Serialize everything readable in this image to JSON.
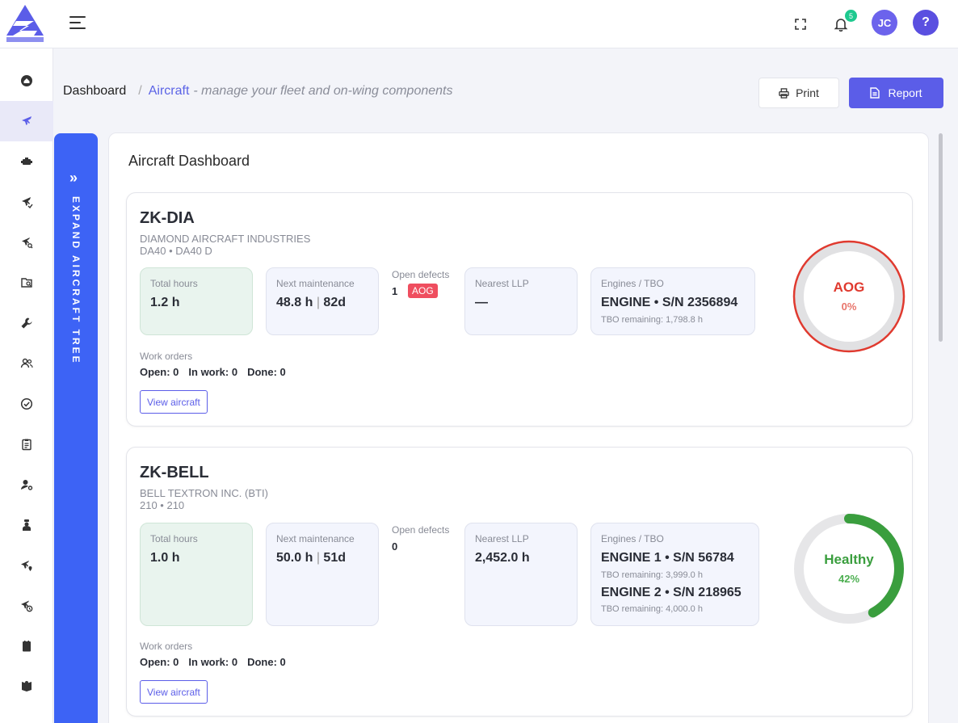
{
  "topbar": {
    "notification_count": "5",
    "user_initials": "JC",
    "help_label": "?"
  },
  "breadcrumb": {
    "home": "Dashboard",
    "separator": "/",
    "current": "Aircraft",
    "description": "- manage your fleet and on-wing components"
  },
  "actions": {
    "print_label": "Print",
    "report_label": "Report"
  },
  "rail": {
    "label": "EXPAND AIRCRAFT TREE"
  },
  "panel": {
    "title": "Aircraft Dashboard"
  },
  "aircraft": [
    {
      "registration": "ZK-DIA",
      "manufacturer": "DIAMOND AIRCRAFT INDUSTRIES",
      "model": "DA40  • DA40 D",
      "total_hours_label": "Total hours",
      "total_hours": "1.2 h",
      "next_maint_label": "Next maintenance",
      "next_maint_hours": "48.8 h",
      "next_maint_days": "82d",
      "defects_label": "Open defects",
      "defects_count": "1",
      "defects_badge": "AOG",
      "llp_label": "Nearest LLP",
      "llp_value": "—",
      "engines_label": "Engines / TBO",
      "engines": [
        {
          "name": "ENGINE • S/N 2356894",
          "tbo": "TBO remaining: 1,798.8 h"
        }
      ],
      "work_orders_label": "Work orders",
      "work_orders": {
        "open": "Open: 0",
        "in_work": "In work: 0",
        "done": "Done: 0"
      },
      "view_label": "View aircraft",
      "status": {
        "label": "AOG",
        "percent_text": "0%",
        "percent": 0,
        "color": "#e03a2f",
        "pct_color": "#e8756b"
      }
    },
    {
      "registration": "ZK-BELL",
      "manufacturer": "BELL TEXTRON INC. (BTI)",
      "model": "210  • 210",
      "total_hours_label": "Total hours",
      "total_hours": "1.0 h",
      "next_maint_label": "Next maintenance",
      "next_maint_hours": "50.0 h",
      "next_maint_days": "51d",
      "defects_label": "Open defects",
      "defects_count": "0",
      "llp_label": "Nearest LLP",
      "llp_value": "2,452.0 h",
      "engines_label": "Engines / TBO",
      "engines": [
        {
          "name": "ENGINE 1 • S/N 56784",
          "tbo": "TBO remaining: 3,999.0 h"
        },
        {
          "name": "ENGINE 2 • S/N 218965",
          "tbo": "TBO remaining: 4,000.0 h"
        }
      ],
      "work_orders_label": "Work orders",
      "work_orders": {
        "open": "Open: 0",
        "in_work": "In work: 0",
        "done": "Done: 0"
      },
      "view_label": "View aircraft",
      "status": {
        "label": "Healthy",
        "percent_text": "42%",
        "percent": 42,
        "color": "#3a9e3e",
        "pct_color": "#4caf50"
      }
    }
  ],
  "sidebar_icons": [
    "home-icon",
    "airplane-icon",
    "engine-icon",
    "flight-log-icon",
    "aircraft-search-icon",
    "inspection-icon",
    "wrench-icon",
    "users-icon",
    "check-circle-icon",
    "clipboard-icon",
    "user-settings-icon",
    "pilot-icon",
    "airport-icon",
    "flight-time-icon",
    "manual-icon",
    "book-icon"
  ],
  "colors": {
    "accent": "#5b5de8",
    "rail": "#3d63f5",
    "aog": "#ef4e5f",
    "healthy": "#3a9e3e"
  }
}
